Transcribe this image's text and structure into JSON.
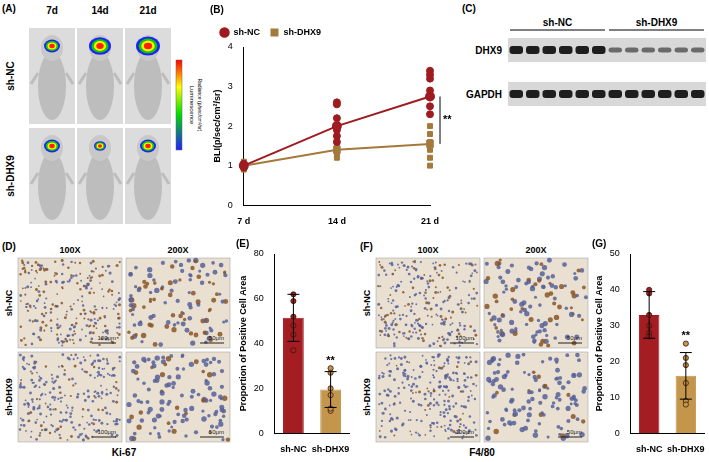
{
  "chart_data": [
    {
      "panel": "(B)",
      "type": "line",
      "y_label": "BLI(p/sec/cm²/sr)",
      "categories": [
        "7 d",
        "14 d",
        "21 d"
      ],
      "ylim": [
        0,
        4
      ],
      "yticks": [
        0,
        1,
        2,
        3,
        4
      ],
      "grid": false,
      "legend": "top-left",
      "annotation": "**",
      "annotation_category": "21 d",
      "series": [
        {
          "name": "sh-NC",
          "color": "#9e1b20",
          "marker": "circle",
          "values": [
            1.0,
            2.0,
            2.75
          ],
          "points": [
            [
              0.95,
              1.0,
              1.05,
              1.0,
              0.98,
              1.02
            ],
            [
              1.6,
              1.75,
              1.9,
              2.0,
              2.2,
              2.55,
              2.6
            ],
            [
              2.3,
              2.5,
              2.75,
              2.9,
              3.2,
              3.3,
              3.4
            ]
          ]
        },
        {
          "name": "sh-DHX9",
          "color": "#a47a3c",
          "marker": "rect",
          "values": [
            1.0,
            1.4,
            1.55
          ],
          "points": [
            [
              0.9,
              0.95,
              1.0,
              1.0,
              1.05,
              1.1
            ],
            [
              1.2,
              1.3,
              1.4,
              1.5,
              1.7
            ],
            [
              1.0,
              1.2,
              1.4,
              1.6,
              1.8,
              2.0
            ]
          ]
        }
      ]
    },
    {
      "panel": "(E)",
      "type": "bar",
      "y_label": "Proportion of Positive Cell Area",
      "categories": [
        "sh-NC",
        "sh-DHX9"
      ],
      "values": [
        51.5,
        19.5
      ],
      "errors": [
        10.5,
        8
      ],
      "points": [
        [
          62,
          59,
          52,
          48,
          44,
          37
        ],
        [
          29,
          27,
          20,
          17,
          10,
          11
        ]
      ],
      "colors": [
        "#a31d22",
        "#c4964c"
      ],
      "ylim": [
        0,
        80
      ],
      "yticks": [
        0,
        20,
        40,
        60,
        80
      ],
      "grid": false,
      "annotation": "**",
      "annotation_category": "sh-DHX9"
    },
    {
      "panel": "(G)",
      "type": "bar",
      "y_label": "Proportion of Positive Cell Area",
      "categories": [
        "sh-NC",
        "sh-DHX9"
      ],
      "values": [
        33,
        16
      ],
      "errors": [
        6.5,
        6.5
      ],
      "points": [
        [
          40,
          39,
          33,
          30,
          28,
          27
        ],
        [
          25,
          21,
          19,
          14,
          9,
          8
        ]
      ],
      "colors": [
        "#a31d22",
        "#c4964c"
      ],
      "ylim": [
        0,
        50
      ],
      "yticks": [
        0,
        10,
        20,
        30,
        40,
        50
      ],
      "grid": false,
      "annotation": "**",
      "annotation_category": "sh-DHX9"
    }
  ],
  "figure": {
    "A": {
      "panel": "(A)",
      "days": [
        "7d",
        "14d",
        "21d"
      ],
      "groups": [
        "sh-NC",
        "sh-DHX9"
      ],
      "colorbar_label": "Luminescence",
      "colorbar_unit": "Radiance (p/sec/cm²/sr)"
    },
    "C": {
      "panel": "(C)",
      "groups": [
        "sh-NC",
        "sh-DHX9"
      ],
      "bands": [
        "DHX9",
        "GAPDH"
      ]
    },
    "D": {
      "panel": "(D)",
      "magnifications": [
        "100X",
        "200X"
      ],
      "groups": [
        "sh-NC",
        "sh-DHX9"
      ],
      "scale_bars": [
        "100μm",
        "50μm"
      ],
      "stain": "Ki-67"
    },
    "F": {
      "panel": "(F)",
      "magnifications": [
        "100X",
        "200X"
      ],
      "groups": [
        "sh-NC",
        "sh-DHX9"
      ],
      "scale_bars": [
        "100μm",
        "50μm"
      ],
      "stain": "F4/80"
    }
  }
}
